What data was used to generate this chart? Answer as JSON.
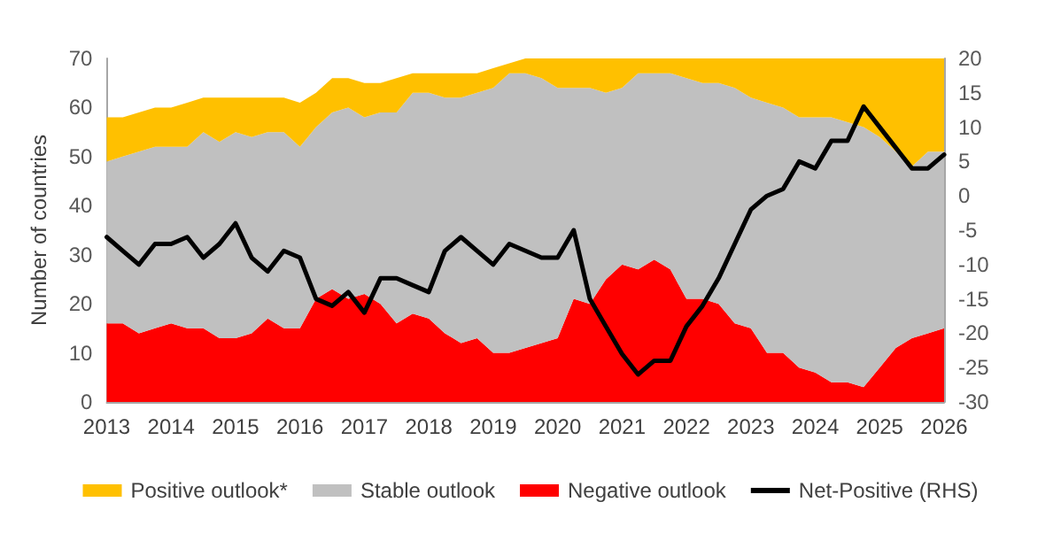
{
  "chart_data": {
    "type": "area",
    "stacked": true,
    "ylabel": "Number of countries",
    "x": [
      2013,
      2013.25,
      2013.5,
      2013.75,
      2014,
      2014.25,
      2014.5,
      2014.75,
      2015,
      2015.25,
      2015.5,
      2015.75,
      2016,
      2016.25,
      2016.5,
      2016.75,
      2017,
      2017.25,
      2017.5,
      2017.75,
      2018,
      2018.25,
      2018.5,
      2018.75,
      2019,
      2019.25,
      2019.5,
      2019.75,
      2020,
      2020.25,
      2020.5,
      2020.75,
      2021,
      2021.25,
      2021.5,
      2021.75,
      2022,
      2022.25,
      2022.5,
      2022.75,
      2023,
      2023.25,
      2023.5,
      2023.75,
      2024,
      2024.25,
      2024.5,
      2024.75,
      2025,
      2025.25,
      2025.5,
      2025.75,
      2026
    ],
    "series": [
      {
        "name": "Negative outlook",
        "color": "#ff0000",
        "values": [
          16,
          16,
          14,
          15,
          16,
          15,
          15,
          13,
          13,
          14,
          17,
          15,
          15,
          21,
          23,
          21,
          22,
          20,
          16,
          18,
          17,
          14,
          12,
          13,
          10,
          10,
          11,
          12,
          13,
          21,
          20,
          25,
          28,
          27,
          29,
          27,
          21,
          21,
          20,
          16,
          15,
          10,
          10,
          7,
          6,
          4,
          4,
          3,
          7,
          11,
          13,
          14,
          15
        ]
      },
      {
        "name": "Stable outlook",
        "color": "#c0c0c0",
        "values": [
          33,
          34,
          37,
          37,
          36,
          37,
          40,
          40,
          42,
          40,
          38,
          40,
          37,
          35,
          36,
          39,
          36,
          39,
          43,
          45,
          46,
          48,
          50,
          50,
          54,
          57,
          56,
          54,
          51,
          43,
          44,
          38,
          36,
          40,
          38,
          40,
          45,
          44,
          45,
          48,
          47,
          51,
          50,
          51,
          52,
          54,
          53,
          53,
          47,
          40,
          35,
          37,
          36
        ]
      },
      {
        "name": "Positive outlook*",
        "color": "#ffc000",
        "values": [
          9,
          8,
          8,
          8,
          8,
          9,
          7,
          9,
          7,
          8,
          7,
          7,
          9,
          7,
          7,
          6,
          7,
          6,
          7,
          4,
          4,
          5,
          5,
          4,
          4,
          2,
          3,
          4,
          6,
          6,
          6,
          7,
          6,
          3,
          3,
          3,
          4,
          5,
          5,
          6,
          8,
          9,
          10,
          12,
          12,
          12,
          13,
          14,
          16,
          19,
          22,
          19,
          19
        ]
      },
      {
        "name": "Net-Positive (RHS)",
        "type": "line",
        "axis": "y2",
        "color": "#000000",
        "values": [
          -6,
          -8,
          -10,
          -7,
          -7,
          -6,
          -9,
          -7,
          -4,
          -9,
          -11,
          -8,
          -9,
          -15,
          -16,
          -14,
          -17,
          -12,
          -12,
          -13,
          -14,
          -8,
          -6,
          -8,
          -10,
          -7,
          -8,
          -9,
          -9,
          -5,
          -15,
          -19,
          -23,
          -26,
          -24,
          -24,
          -19,
          -16,
          -12,
          -7,
          -2,
          0,
          1,
          5,
          4,
          8,
          8,
          13,
          10,
          7,
          4,
          4,
          6
        ]
      }
    ],
    "xlim": [
      2013,
      2026
    ],
    "xticks": [
      2013,
      2014,
      2015,
      2016,
      2017,
      2018,
      2019,
      2020,
      2021,
      2022,
      2023,
      2024,
      2025,
      2026
    ],
    "ylim": [
      0,
      70
    ],
    "yticks": [
      0,
      10,
      20,
      30,
      40,
      50,
      60,
      70
    ],
    "y2lim": [
      -30,
      20
    ],
    "y2ticks": [
      -30,
      -25,
      -20,
      -15,
      -10,
      -5,
      0,
      5,
      10,
      15,
      20
    ],
    "grid": false,
    "legend": "bottom",
    "marker": "none"
  }
}
